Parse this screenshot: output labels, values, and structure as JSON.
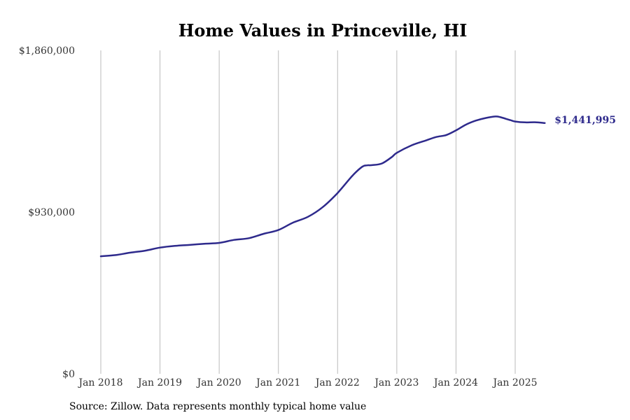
{
  "chart_data": {
    "type": "line",
    "title": "Home Values in Princeville, HI",
    "xlabel": "",
    "ylabel": "",
    "ylim": [
      0,
      1860000
    ],
    "y_ticks": [
      {
        "value": 0,
        "label": "$0"
      },
      {
        "value": 930000,
        "label": "$930,000"
      },
      {
        "value": 1860000,
        "label": "$1,860,000"
      }
    ],
    "x_ticks": [
      "Jan 2018",
      "Jan 2019",
      "Jan 2020",
      "Jan 2021",
      "Jan 2022",
      "Jan 2023",
      "Jan 2024",
      "Jan 2025"
    ],
    "grid": {
      "x": true,
      "y": false
    },
    "line_color": "#2e2a8c",
    "end_label": "$1,441,995",
    "series": [
      {
        "x": [
          "2018-01",
          "2018-04",
          "2018-07",
          "2018-10",
          "2019-01",
          "2019-04",
          "2019-07",
          "2019-10",
          "2020-01",
          "2020-04",
          "2020-07",
          "2020-10",
          "2021-01",
          "2021-04",
          "2021-07",
          "2021-10",
          "2022-01",
          "2022-04",
          "2022-06",
          "2022-07",
          "2022-08",
          "2022-10",
          "2022-12",
          "2023-01",
          "2023-04",
          "2023-07",
          "2023-09",
          "2023-11",
          "2024-01",
          "2024-03",
          "2024-05",
          "2024-07",
          "2024-09",
          "2024-10",
          "2024-12",
          "2025-01",
          "2025-03",
          "2025-05",
          "2025-07"
        ],
        "values": [
          676000,
          683000,
          697000,
          708000,
          726000,
          736000,
          741000,
          748000,
          753000,
          770000,
          780000,
          805000,
          827000,
          870000,
          903000,
          959000,
          1040000,
          1139000,
          1191000,
          1199000,
          1200000,
          1210000,
          1247000,
          1271000,
          1314000,
          1343000,
          1362000,
          1373000,
          1400000,
          1433000,
          1456000,
          1471000,
          1480000,
          1476000,
          1459000,
          1451000,
          1446000,
          1447000,
          1441995
        ]
      }
    ]
  },
  "source_text": "Source: Zillow. Data represents monthly typical home value"
}
